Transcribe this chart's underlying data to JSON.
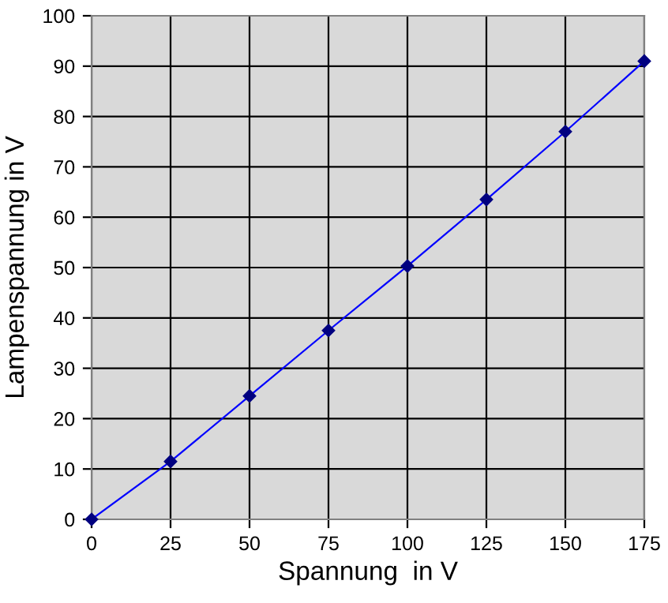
{
  "chart_data": {
    "type": "line",
    "xlabel": "Spannung  in V",
    "ylabel": "Lampenspannung in V",
    "x": [
      0,
      25,
      50,
      75,
      100,
      125,
      150,
      175
    ],
    "series": [
      {
        "color": "#0000ff",
        "values": [
          0,
          11.5,
          24.5,
          37.5,
          50.3,
          63.5,
          77,
          91
        ]
      }
    ],
    "xlim": [
      0,
      175
    ],
    "xticks": [
      0,
      25,
      50,
      75,
      100,
      125,
      150,
      175
    ],
    "ylim": [
      0,
      100
    ],
    "yticks": [
      0,
      10,
      20,
      30,
      40,
      50,
      60,
      70,
      80,
      90,
      100
    ],
    "grid": true,
    "marker": "diamond",
    "line_style": "solid"
  }
}
